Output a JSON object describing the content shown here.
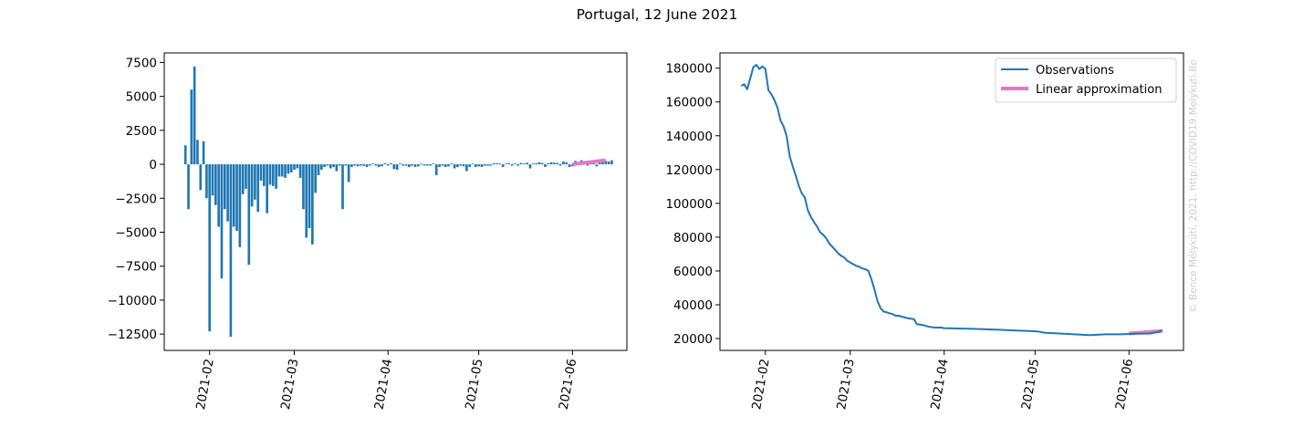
{
  "figure": {
    "title": "Portugal, 12 June 2021",
    "watermark": "© Bence Mélykúti, 2021. http://COVID19.Melykuti.Be"
  },
  "colors": {
    "bar": "#1f77b4",
    "observations": "#1f77b4",
    "linear": "#e377c2",
    "watermark": "#cccccc"
  },
  "chart_data": [
    {
      "type": "bar",
      "title": "",
      "xlabel": "",
      "ylabel": "",
      "x_start": "2021-01-24",
      "x_ticks": [
        "2021-02",
        "2021-03",
        "2021-04",
        "2021-05",
        "2021-06"
      ],
      "x_tick_days": [
        8,
        36,
        67,
        97,
        128
      ],
      "xlim_days": [
        -7,
        146
      ],
      "ylim": [
        -13700,
        8200
      ],
      "y_ticks": [
        7500,
        5000,
        2500,
        0,
        -2500,
        -5000,
        -7500,
        -10000,
        -12500
      ],
      "y_tick_labels": [
        "7500",
        "5000",
        "2500",
        "0",
        "−2500",
        "−5000",
        "−7500",
        "−10000",
        "−12500"
      ],
      "grid": false,
      "values": [
        1400,
        -3300,
        5500,
        7200,
        1800,
        -1900,
        1700,
        -2500,
        -12300,
        -2300,
        -3000,
        -4600,
        -8400,
        -3300,
        -4200,
        -12700,
        -4600,
        -4900,
        -6100,
        -2200,
        -1800,
        -7400,
        -3100,
        -2600,
        -3500,
        -1200,
        -1600,
        -3600,
        -1500,
        -1600,
        -1800,
        -900,
        -900,
        -1000,
        -700,
        -600,
        -400,
        -300,
        -1000,
        -3300,
        -5400,
        -4700,
        -5900,
        -2100,
        -800,
        -400,
        -200,
        -100,
        -300,
        -200,
        -500,
        -100,
        -3300,
        -100,
        -1300,
        -200,
        -100,
        -150,
        -100,
        -120,
        -200,
        -100,
        60,
        -100,
        -200,
        -150,
        80,
        -100,
        80,
        -350,
        -400,
        60,
        -100,
        -100,
        -200,
        -100,
        -200,
        -150,
        50,
        -100,
        -100,
        -100,
        60,
        -800,
        -200,
        -100,
        -200,
        -150,
        60,
        -300,
        -200,
        -100,
        -150,
        -500,
        -200,
        50,
        -200,
        -150,
        -200,
        -100,
        -100,
        -100,
        80,
        80,
        60,
        -200,
        50,
        80,
        -100,
        60,
        -100,
        100,
        60,
        120,
        -300,
        60,
        80,
        150,
        100,
        -200,
        80,
        150,
        120,
        100,
        -100,
        200,
        150,
        -200,
        -150,
        250,
        150,
        300,
        100,
        -100,
        200,
        250,
        -150,
        200,
        300,
        250,
        200,
        300
      ],
      "series": [
        {
          "name": "Linear approximation",
          "x_days": [
            128,
            139
          ],
          "y": [
            0,
            300
          ]
        }
      ]
    },
    {
      "type": "line",
      "title": "",
      "xlabel": "",
      "ylabel": "",
      "x_start": "2021-01-24",
      "x_ticks": [
        "2021-02",
        "2021-03",
        "2021-04",
        "2021-05",
        "2021-06"
      ],
      "x_tick_days": [
        8,
        36,
        67,
        97,
        128
      ],
      "xlim_days": [
        -7,
        146
      ],
      "ylim": [
        13000,
        189000
      ],
      "y_ticks": [
        20000,
        40000,
        60000,
        80000,
        100000,
        120000,
        140000,
        160000,
        180000
      ],
      "y_tick_labels": [
        "20000",
        "40000",
        "60000",
        "80000",
        "100000",
        "120000",
        "140000",
        "160000",
        "180000"
      ],
      "grid": false,
      "legend": "top-right",
      "series": [
        {
          "name": "Observations",
          "x_days": [
            0,
            1,
            2,
            3,
            4,
            5,
            6,
            7,
            8,
            9,
            10,
            11,
            12,
            13,
            14,
            15,
            16,
            17,
            18,
            19,
            20,
            21,
            22,
            23,
            24,
            25,
            26,
            27,
            28,
            29,
            30,
            31,
            32,
            33,
            34,
            35,
            36,
            37,
            38,
            39,
            40,
            41,
            42,
            43,
            44,
            45,
            46,
            47,
            48,
            49,
            50,
            51,
            52,
            53,
            55,
            57,
            58,
            60,
            62,
            64,
            65,
            66,
            67,
            70,
            75,
            80,
            85,
            90,
            95,
            98,
            100,
            105,
            110,
            115,
            118,
            120,
            125,
            130,
            135,
            138,
            139
          ],
          "values": [
            169500,
            170500,
            167500,
            174000,
            180500,
            182000,
            179500,
            181000,
            179500,
            167000,
            164500,
            161000,
            156500,
            149000,
            145500,
            140000,
            128000,
            122000,
            116500,
            110500,
            106000,
            103500,
            96000,
            92000,
            89000,
            86500,
            83000,
            81500,
            79500,
            76500,
            74500,
            72500,
            70500,
            69000,
            68000,
            66000,
            65000,
            64000,
            63000,
            62500,
            61500,
            61000,
            60000,
            55000,
            49000,
            42000,
            38000,
            36000,
            35500,
            35000,
            34500,
            33500,
            33500,
            33000,
            32000,
            31500,
            28500,
            28000,
            27000,
            26500,
            26500,
            26500,
            26200,
            26000,
            25800,
            25500,
            25200,
            24800,
            24500,
            24200,
            23500,
            23000,
            22500,
            22000,
            22300,
            22500,
            22500,
            22800,
            23000,
            24000,
            25000
          ]
        },
        {
          "name": "Linear approximation",
          "x_days": [
            128,
            139
          ],
          "values": [
            23000,
            24500
          ]
        }
      ]
    }
  ]
}
